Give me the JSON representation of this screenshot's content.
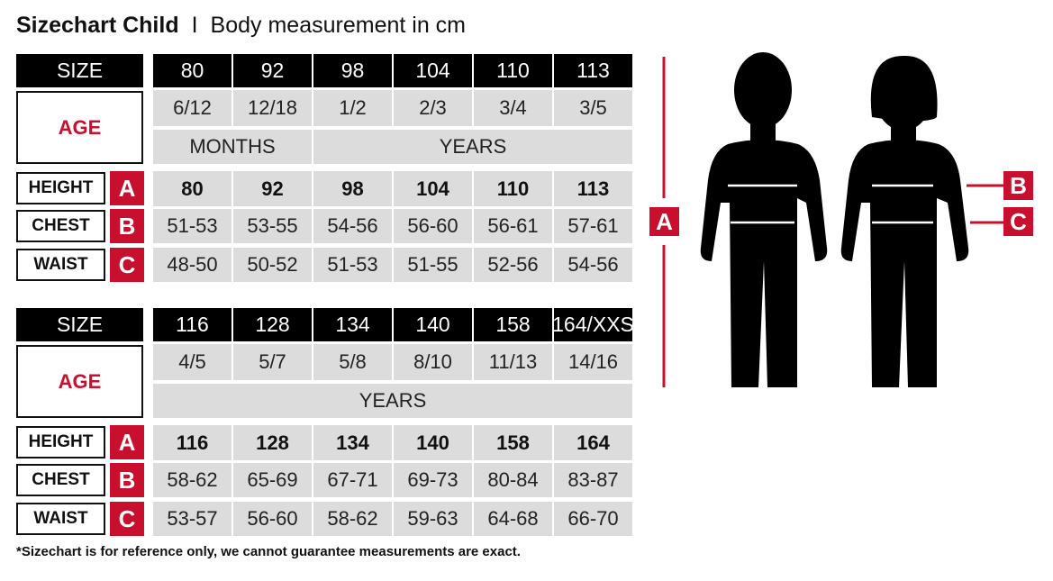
{
  "title": {
    "main": "Sizechart Child",
    "separator": "I",
    "subtitle": "Body measurement in cm"
  },
  "labels": {
    "size": "SIZE",
    "age": "AGE",
    "height": "HEIGHT",
    "chest": "CHEST",
    "waist": "WAIST",
    "height_key": "A",
    "chest_key": "B",
    "waist_key": "C"
  },
  "tables": [
    {
      "sizes": [
        "80",
        "92",
        "98",
        "104",
        "110",
        "113"
      ],
      "ages": [
        "6/12",
        "12/18",
        "1/2",
        "2/3",
        "3/4",
        "3/5"
      ],
      "units": [
        {
          "label": "MONTHS",
          "span": 2
        },
        {
          "label": "YEARS",
          "span": 4
        }
      ],
      "height": [
        "80",
        "92",
        "98",
        "104",
        "110",
        "113"
      ],
      "chest": [
        "51-53",
        "53-55",
        "54-56",
        "56-60",
        "56-61",
        "57-61"
      ],
      "waist": [
        "48-50",
        "50-52",
        "51-53",
        "51-55",
        "52-56",
        "54-56"
      ]
    },
    {
      "sizes": [
        "116",
        "128",
        "134",
        "140",
        "158",
        "164/XXS"
      ],
      "ages": [
        "4/5",
        "5/7",
        "5/8",
        "8/10",
        "11/13",
        "14/16"
      ],
      "units": [
        {
          "label": "YEARS",
          "span": 6
        }
      ],
      "height": [
        "116",
        "128",
        "134",
        "140",
        "158",
        "164"
      ],
      "chest": [
        "58-62",
        "65-69",
        "67-71",
        "69-73",
        "80-84",
        "83-87"
      ],
      "waist": [
        "53-57",
        "56-60",
        "58-62",
        "59-63",
        "64-68",
        "66-70"
      ]
    }
  ],
  "figure": {
    "marker_a": "A",
    "marker_b": "B",
    "marker_c": "C"
  },
  "colors": {
    "accent_red": "#c8102e",
    "header_black": "#000000",
    "cell_gray": "#dcdcdc"
  },
  "footnote": "*Sizechart is for reference only, we cannot guarantee measurements are exact."
}
